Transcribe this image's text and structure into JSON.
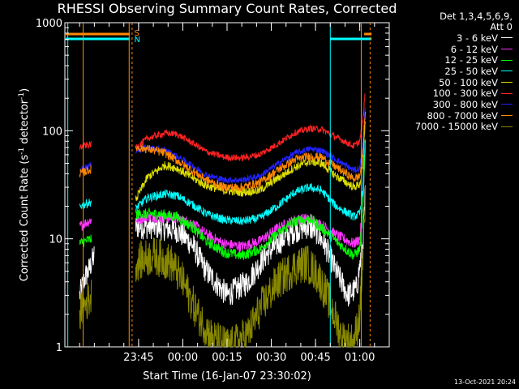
{
  "chart_data": {
    "type": "line",
    "title": "RHESSI Observing Summary Count Rates, Corrected",
    "xlabel": "Start Time (16-Jan-07 23:30:02)",
    "ylabel_main": "Corrected Count Rate (s",
    "ylabel_sup1": "-1",
    "ylabel_mid": " detector",
    "ylabel_sup2": "-1",
    "ylabel_end": ")",
    "y_scale": "log",
    "ylim": [
      1,
      1000
    ],
    "y_ticks": [
      {
        "value": 1,
        "label": "1"
      },
      {
        "value": 10,
        "label": "10"
      },
      {
        "value": 100,
        "label": "100"
      },
      {
        "value": 1000,
        "label": "1000"
      }
    ],
    "x_units": "minutes after 23:30 on 16-Jan-07",
    "xlim": [
      -10,
      100
    ],
    "x_ticks": [
      {
        "value": 15,
        "label": "23:45"
      },
      {
        "value": 30,
        "label": "00:00"
      },
      {
        "value": 45,
        "label": "00:15"
      },
      {
        "value": 60,
        "label": "00:30"
      },
      {
        "value": 75,
        "label": "00:45"
      },
      {
        "value": 90,
        "label": "01:00"
      }
    ],
    "legend_header": [
      "Det 1,3,4,5,6,9,",
      "Att 0"
    ],
    "series": [
      {
        "name": "3 - 6 keV",
        "color": "#ffffff",
        "noise": 0.12,
        "points": [
          [
            -5,
            3
          ],
          [
            -3,
            4.5
          ],
          [
            -2,
            5
          ],
          [
            -1,
            6
          ],
          [
            0,
            7
          ]
        ],
        "points2": [
          [
            14,
            13
          ],
          [
            20,
            13
          ],
          [
            28,
            12
          ],
          [
            33,
            9
          ],
          [
            38,
            5
          ],
          [
            45,
            3
          ],
          [
            52,
            4
          ],
          [
            58,
            7
          ],
          [
            64,
            10
          ],
          [
            68,
            12
          ],
          [
            72,
            13
          ],
          [
            75,
            12
          ],
          [
            78,
            9
          ],
          [
            82,
            5
          ],
          [
            86,
            3
          ],
          [
            89,
            3.5
          ],
          [
            91,
            9
          ],
          [
            92,
            30
          ]
        ]
      },
      {
        "name": "6 - 12 keV",
        "color": "#ff33ff",
        "noise": 0.05,
        "points": [
          [
            -5,
            13
          ],
          [
            -3,
            14
          ],
          [
            -1,
            15
          ]
        ],
        "points2": [
          [
            14,
            15
          ],
          [
            18,
            16
          ],
          [
            28,
            15.5
          ],
          [
            33,
            14
          ],
          [
            38,
            11
          ],
          [
            44,
            9
          ],
          [
            50,
            8.5
          ],
          [
            56,
            9.5
          ],
          [
            62,
            12.5
          ],
          [
            68,
            15
          ],
          [
            73,
            15.5
          ],
          [
            78,
            13
          ],
          [
            83,
            10.5
          ],
          [
            88,
            9
          ],
          [
            90,
            10
          ],
          [
            91,
            20
          ],
          [
            92,
            80
          ]
        ]
      },
      {
        "name": "12 - 25 keV",
        "color": "#00ff00",
        "noise": 0.05,
        "points": [
          [
            -5,
            9
          ],
          [
            -3,
            9.5
          ],
          [
            -1,
            10
          ]
        ],
        "points2": [
          [
            14,
            17
          ],
          [
            22,
            17
          ],
          [
            28,
            16
          ],
          [
            33,
            13
          ],
          [
            38,
            9.5
          ],
          [
            44,
            7.5
          ],
          [
            50,
            7
          ],
          [
            56,
            8
          ],
          [
            62,
            11
          ],
          [
            68,
            14.5
          ],
          [
            73,
            15.5
          ],
          [
            78,
            12
          ],
          [
            83,
            9
          ],
          [
            88,
            7
          ],
          [
            90,
            8
          ],
          [
            91,
            18
          ],
          [
            92,
            90
          ]
        ]
      },
      {
        "name": "25 - 50 keV",
        "color": "#00ffff",
        "noise": 0.04,
        "points": [
          [
            -5,
            20
          ],
          [
            -3,
            21
          ],
          [
            -1,
            22
          ]
        ],
        "points2": [
          [
            14,
            19
          ],
          [
            18,
            24
          ],
          [
            24,
            26
          ],
          [
            28,
            25
          ],
          [
            33,
            21
          ],
          [
            38,
            17
          ],
          [
            44,
            15
          ],
          [
            50,
            14.5
          ],
          [
            56,
            15.5
          ],
          [
            62,
            20
          ],
          [
            68,
            27
          ],
          [
            73,
            30
          ],
          [
            77,
            28
          ],
          [
            82,
            20
          ],
          [
            88,
            16
          ],
          [
            90,
            17
          ],
          [
            91,
            28
          ],
          [
            92,
            100
          ]
        ]
      },
      {
        "name": "50 - 100 keV",
        "color": "#dddd00",
        "noise": 0.04,
        "points": [],
        "points2": [
          [
            14,
            23
          ],
          [
            18,
            37
          ],
          [
            24,
            48
          ],
          [
            28,
            45
          ],
          [
            33,
            37
          ],
          [
            38,
            31
          ],
          [
            44,
            28
          ],
          [
            50,
            27
          ],
          [
            56,
            28
          ],
          [
            62,
            36
          ],
          [
            68,
            46
          ],
          [
            73,
            52
          ],
          [
            77,
            50
          ],
          [
            82,
            38
          ],
          [
            88,
            30
          ],
          [
            90,
            32
          ],
          [
            91,
            45
          ],
          [
            92,
            150
          ]
        ]
      },
      {
        "name": "100 - 300 keV",
        "color": "#ff2222",
        "noise": 0.03,
        "points": [
          [
            -5,
            70
          ],
          [
            -3,
            73
          ],
          [
            -1,
            75
          ]
        ],
        "points2": [
          [
            14,
            70
          ],
          [
            18,
            85
          ],
          [
            24,
            95
          ],
          [
            28,
            93
          ],
          [
            33,
            78
          ],
          [
            38,
            64
          ],
          [
            44,
            57
          ],
          [
            50,
            56
          ],
          [
            56,
            60
          ],
          [
            62,
            75
          ],
          [
            68,
            96
          ],
          [
            73,
            105
          ],
          [
            77,
            103
          ],
          [
            82,
            87
          ],
          [
            88,
            72
          ],
          [
            90,
            80
          ],
          [
            91,
            120
          ],
          [
            92,
            250
          ]
        ]
      },
      {
        "name": "300 - 800 keV",
        "color": "#2222ff",
        "noise": 0.03,
        "points": [
          [
            -5,
            43
          ],
          [
            -3,
            46
          ],
          [
            -1,
            48
          ]
        ],
        "points2": [
          [
            14,
            65
          ],
          [
            18,
            70
          ],
          [
            24,
            66
          ],
          [
            28,
            58
          ],
          [
            33,
            48
          ],
          [
            38,
            39
          ],
          [
            44,
            35
          ],
          [
            50,
            35
          ],
          [
            56,
            38
          ],
          [
            62,
            49
          ],
          [
            68,
            62
          ],
          [
            73,
            68
          ],
          [
            77,
            66
          ],
          [
            82,
            54
          ],
          [
            88,
            43
          ],
          [
            90,
            45
          ],
          [
            91,
            70
          ],
          [
            92,
            200
          ]
        ]
      },
      {
        "name": "800 - 7000 keV",
        "color": "#ff8800",
        "noise": 0.04,
        "points": [
          [
            -5,
            40
          ],
          [
            -3,
            42
          ],
          [
            -1,
            44
          ]
        ],
        "points2": [
          [
            14,
            70
          ],
          [
            18,
            68
          ],
          [
            24,
            62
          ],
          [
            28,
            53
          ],
          [
            33,
            43
          ],
          [
            38,
            35
          ],
          [
            44,
            30
          ],
          [
            50,
            30
          ],
          [
            56,
            33
          ],
          [
            62,
            43
          ],
          [
            68,
            54
          ],
          [
            73,
            58
          ],
          [
            77,
            57
          ],
          [
            82,
            46
          ],
          [
            88,
            36
          ],
          [
            90,
            38
          ],
          [
            91,
            60
          ],
          [
            92,
            180
          ]
        ]
      },
      {
        "name": "7000 - 15000 keV",
        "color": "#888800",
        "noise": 0.18,
        "points": [
          [
            -5,
            2
          ],
          [
            -3,
            2.5
          ],
          [
            -1,
            3
          ]
        ],
        "points2": [
          [
            14,
            6
          ],
          [
            20,
            7
          ],
          [
            26,
            6
          ],
          [
            30,
            4
          ],
          [
            35,
            2
          ],
          [
            40,
            1.2
          ],
          [
            46,
            1
          ],
          [
            52,
            1.3
          ],
          [
            56,
            2.2
          ],
          [
            62,
            4
          ],
          [
            68,
            5.5
          ],
          [
            72,
            6
          ],
          [
            76,
            4.5
          ],
          [
            80,
            2.5
          ],
          [
            84,
            1.2
          ],
          [
            88,
            1.1
          ],
          [
            90,
            2
          ],
          [
            91,
            6
          ],
          [
            92,
            25
          ]
        ]
      }
    ],
    "orbit_flags": [
      {
        "letter": "S",
        "color": "#ff8800"
      },
      {
        "letter": "N",
        "color": "#00ffff"
      }
    ],
    "date_stamp": "13-Oct-2021 20:24"
  }
}
